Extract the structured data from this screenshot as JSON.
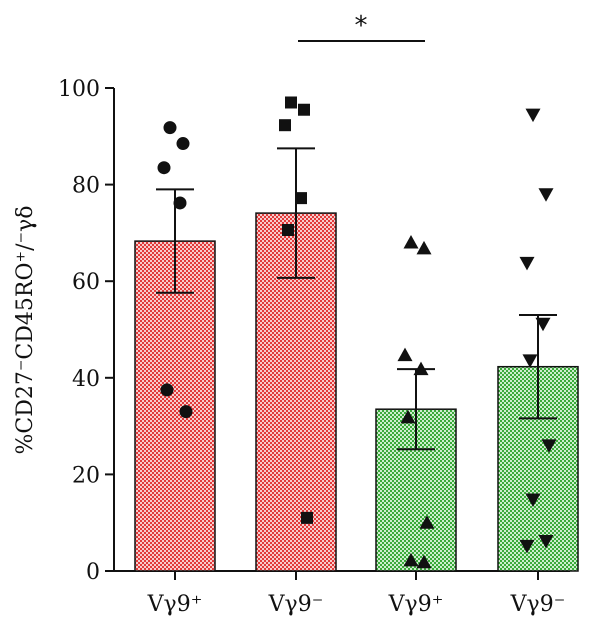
{
  "chart_data": {
    "type": "bar",
    "ylabel": "%CD27⁻CD45RO⁺/⁻γδ",
    "ylim": [
      0,
      100
    ],
    "yticks": [
      0,
      20,
      40,
      60,
      80,
      100
    ],
    "categories": [
      "Vγ9⁺",
      "Vγ9⁻",
      "Vγ9⁺",
      "Vγ9⁻"
    ],
    "bars": [
      {
        "category": "Vγ9⁺",
        "mean": 68.3,
        "sem": 10.7,
        "pattern": "red",
        "marker": "circle",
        "points": [
          91.8,
          88.5,
          83.5,
          76.2,
          37.5,
          33.0
        ]
      },
      {
        "category": "Vγ9⁻",
        "mean": 74.1,
        "sem": 13.4,
        "pattern": "red",
        "marker": "square",
        "points": [
          97.0,
          95.5,
          92.3,
          77.2,
          70.6,
          11.0
        ]
      },
      {
        "category": "Vγ9⁺",
        "mean": 33.5,
        "sem": 8.3,
        "pattern": "green",
        "marker": "triangle-up",
        "points": [
          68.0,
          66.8,
          44.7,
          41.8,
          31.8,
          10.0,
          2.2,
          1.8
        ]
      },
      {
        "category": "Vγ9⁻",
        "mean": 42.3,
        "sem": 10.7,
        "pattern": "green",
        "marker": "triangle-down",
        "points": [
          94.5,
          78.0,
          63.8,
          51.2,
          43.6,
          26.0,
          14.8,
          6.2,
          5.2
        ]
      }
    ],
    "significance": {
      "from": 1,
      "to": 2,
      "label": "*"
    },
    "grid": false,
    "colors": {
      "red_fill": "#e23a3a",
      "red_light": "#f7cccc",
      "green_fill": "#3aaa3a",
      "green_light": "#cdeecd",
      "ink": "#111111"
    }
  }
}
